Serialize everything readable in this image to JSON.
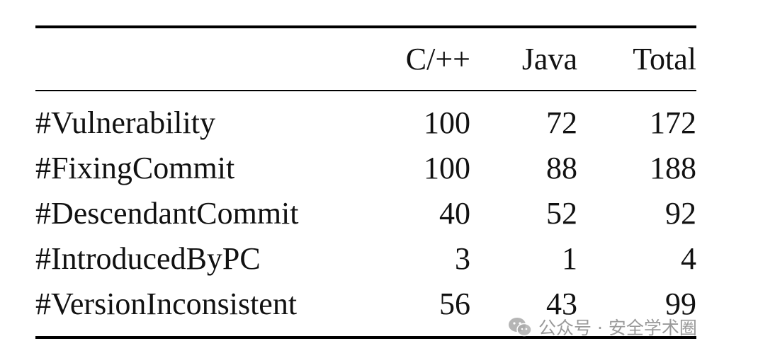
{
  "table": {
    "header": [
      "C/++",
      "Java",
      "Total"
    ],
    "rows": [
      [
        "#Vulnerability",
        100,
        72,
        172
      ],
      [
        "#FixingCommit",
        100,
        88,
        188
      ],
      [
        "#DescendantCommit",
        40,
        52,
        92
      ],
      [
        "#IntroducedByPC",
        3,
        1,
        4
      ],
      [
        "#VersionInconsistent",
        56,
        43,
        99
      ]
    ]
  },
  "watermark": "公众号 · 安全学术圈"
}
